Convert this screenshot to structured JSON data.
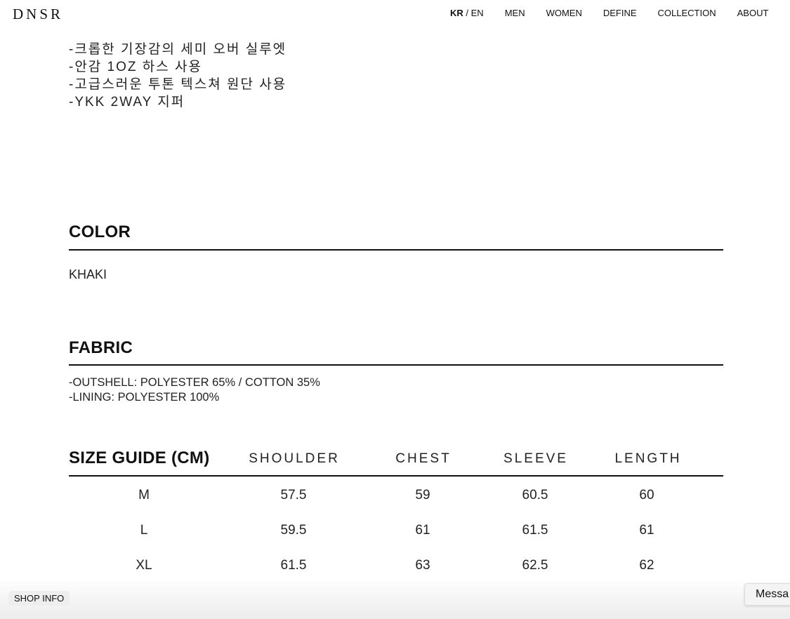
{
  "header": {
    "logo": "DNSR",
    "lang_active": "KR",
    "lang_sep": " / ",
    "lang_other": "EN",
    "nav": [
      "MEN",
      "WOMEN",
      "DEFINE",
      "COLLECTION",
      "ABOUT"
    ]
  },
  "description": [
    "-크롭한 기장감의 세미 오버 실루엣",
    "-안감 1OZ 하스 사용",
    "-고급스러운 투톤 텍스쳐 원단 사용",
    "-YKK 2WAY 지퍼"
  ],
  "color": {
    "heading": "COLOR",
    "value": "KHAKI"
  },
  "fabric": {
    "heading": "FABRIC",
    "lines": [
      "-OUTSHELL: POLYESTER 65% / COTTON 35%",
      "-LINING: POLYESTER 100%"
    ]
  },
  "size_guide": {
    "heading": "SIZE GUIDE (CM)",
    "columns": [
      "SHOULDER",
      "CHEST",
      "SLEEVE",
      "LENGTH"
    ],
    "rows": [
      {
        "size": "M",
        "values": [
          "57.5",
          "59",
          "60.5",
          "60"
        ]
      },
      {
        "size": "L",
        "values": [
          "59.5",
          "61",
          "61.5",
          "61"
        ]
      },
      {
        "size": "XL",
        "values": [
          "61.5",
          "63",
          "62.5",
          "62"
        ]
      }
    ]
  },
  "footer": {
    "shop_info": "SHOP INFO",
    "message": "Messa"
  }
}
